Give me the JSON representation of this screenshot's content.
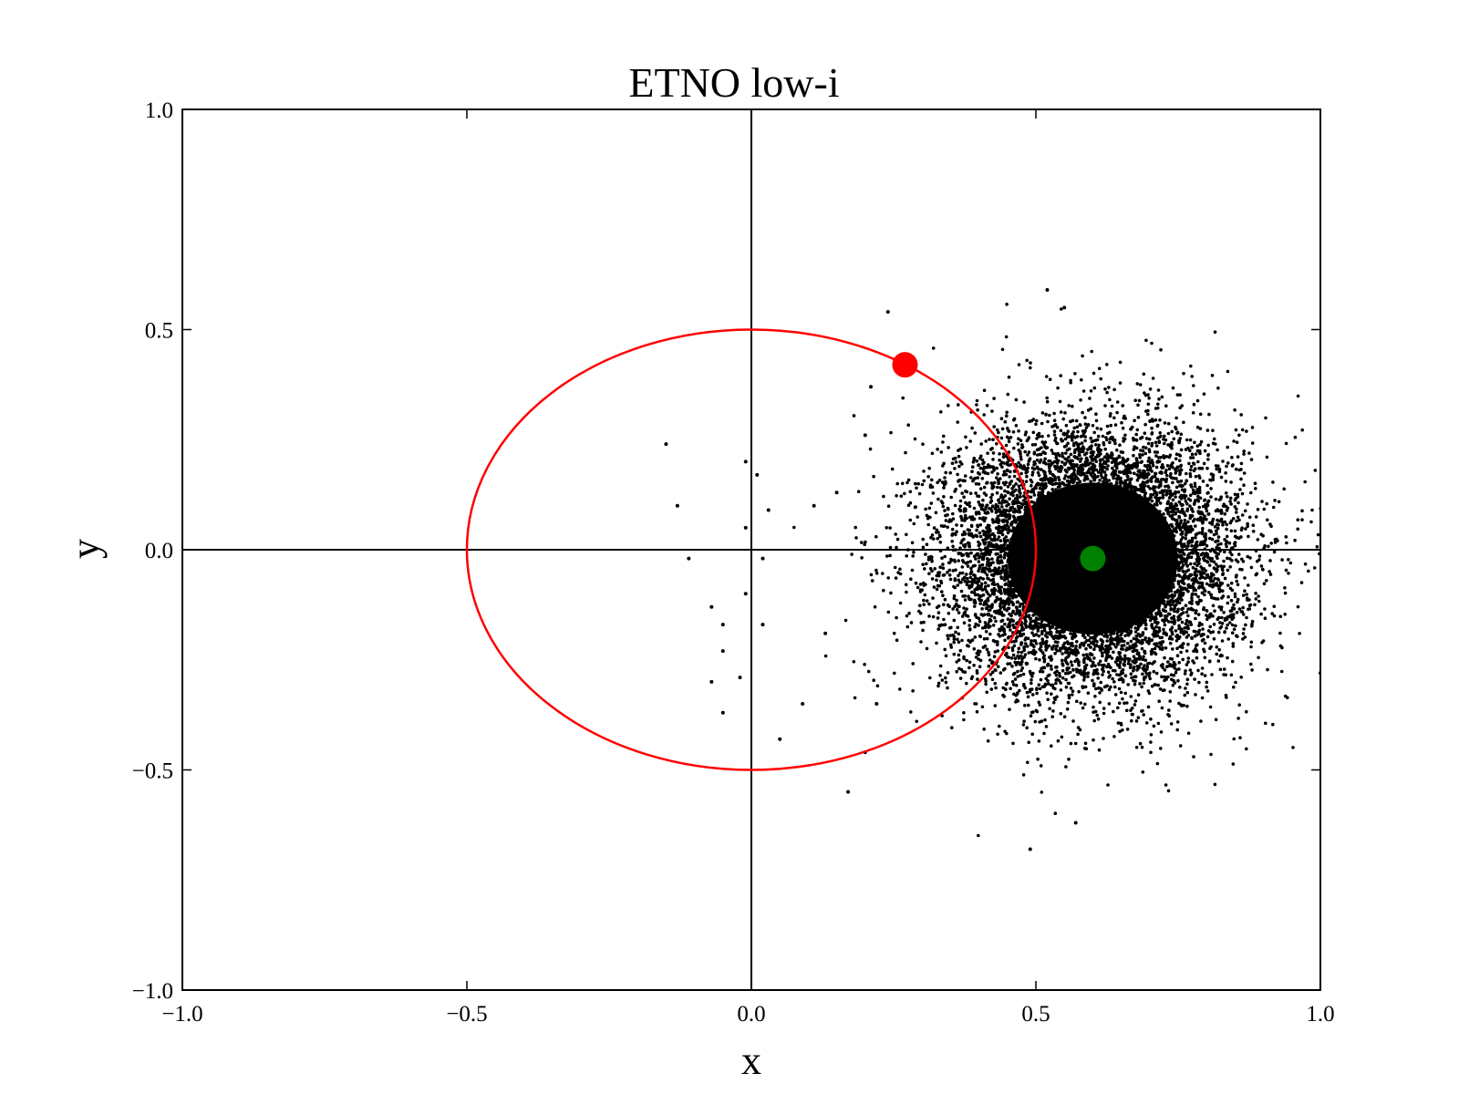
{
  "chart_data": {
    "type": "scatter",
    "title": "ETNO low-i",
    "xlabel": "x",
    "ylabel": "y",
    "xlim": [
      -1.0,
      1.0
    ],
    "ylim": [
      -1.0,
      1.0
    ],
    "xticks": [
      -1.0,
      -0.5,
      0.0,
      0.5,
      1.0
    ],
    "yticks": [
      -1.0,
      -0.5,
      0.0,
      0.5,
      1.0
    ],
    "xtick_labels": [
      "−1.0",
      "−0.5",
      "0.0",
      "0.5",
      "1.0"
    ],
    "ytick_labels": [
      "−1.0",
      "−0.5",
      "0.0",
      "0.5",
      "1.0"
    ],
    "grid": false,
    "reference_lines": [
      {
        "orientation": "horizontal",
        "value": 0.0,
        "color": "#000000"
      },
      {
        "orientation": "vertical",
        "value": 0.0,
        "color": "#000000"
      }
    ],
    "ellipse": {
      "center": [
        0.0,
        0.0
      ],
      "rx": 0.5,
      "ry": 0.5,
      "color": "#ff0000"
    },
    "markers": [
      {
        "x": 0.27,
        "y": 0.42,
        "color": "#ff0000"
      },
      {
        "x": 0.6,
        "y": -0.02,
        "color": "#008000"
      }
    ],
    "cloud": {
      "color": "#000000",
      "center": [
        0.6,
        -0.02
      ],
      "sigma_x": 0.13,
      "sigma_y": 0.15,
      "approx_x_range": [
        -0.17,
        1.02
      ],
      "approx_y_range": [
        -0.68,
        0.59
      ]
    },
    "outlier_points": [
      {
        "x": -0.15,
        "y": 0.24
      },
      {
        "x": -0.13,
        "y": 0.1
      },
      {
        "x": -0.11,
        "y": -0.02
      },
      {
        "x": -0.07,
        "y": -0.13
      },
      {
        "x": -0.05,
        "y": -0.17
      },
      {
        "x": -0.05,
        "y": -0.23
      },
      {
        "x": -0.07,
        "y": -0.3
      },
      {
        "x": -0.05,
        "y": -0.37
      },
      {
        "x": -0.02,
        "y": -0.29
      },
      {
        "x": -0.01,
        "y": -0.1
      },
      {
        "x": -0.01,
        "y": 0.05
      },
      {
        "x": -0.01,
        "y": 0.2
      },
      {
        "x": 0.01,
        "y": 0.17
      },
      {
        "x": 0.02,
        "y": -0.02
      },
      {
        "x": 0.02,
        "y": -0.17
      },
      {
        "x": 0.03,
        "y": 0.09
      },
      {
        "x": 0.05,
        "y": -0.43
      },
      {
        "x": 0.09,
        "y": -0.35
      },
      {
        "x": 0.11,
        "y": 0.1
      },
      {
        "x": 0.13,
        "y": -0.19
      },
      {
        "x": 0.15,
        "y": 0.13
      },
      {
        "x": 0.17,
        "y": -0.55
      },
      {
        "x": 0.2,
        "y": -0.46
      },
      {
        "x": 0.24,
        "y": 0.54
      },
      {
        "x": 0.21,
        "y": 0.37
      },
      {
        "x": 0.2,
        "y": 0.26
      },
      {
        "x": 0.22,
        "y": -0.35
      },
      {
        "x": 0.49,
        "y": -0.68
      },
      {
        "x": 0.52,
        "y": 0.59
      },
      {
        "x": 0.55,
        "y": 0.55
      },
      {
        "x": 0.57,
        "y": -0.62
      },
      {
        "x": 1.0,
        "y": -0.28
      },
      {
        "x": 1.02,
        "y": 0.08
      }
    ]
  }
}
